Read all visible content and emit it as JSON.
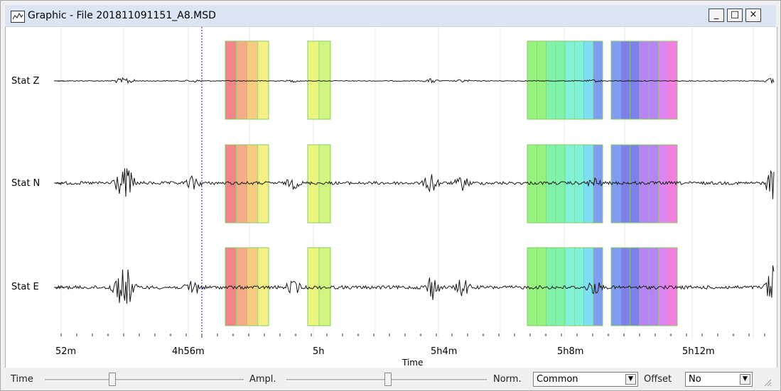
{
  "window": {
    "title": "Graphic - File 201811091151_A8.MSD",
    "minimize_label": "_",
    "maximize_label": "□",
    "close_label": "×"
  },
  "plot": {
    "channels": [
      {
        "label": "Stat Z"
      },
      {
        "label": "Stat N"
      },
      {
        "label": "Stat E"
      }
    ],
    "x_ticks": [
      {
        "label": "52m"
      },
      {
        "label": "4h56m"
      },
      {
        "label": "5h"
      },
      {
        "label": "5h4m"
      },
      {
        "label": "5h8m"
      },
      {
        "label": "5h12m"
      }
    ],
    "x_axis_title": "Time"
  },
  "controls": {
    "time_label": "Time",
    "time_value": 0.34,
    "ampl_label": "Ampl.",
    "ampl_value": 0.42,
    "norm_label": "Norm.",
    "norm_value": "Common",
    "offset_label": "Offset",
    "offset_value": "No"
  },
  "colors": {
    "trace": "#1a1a1a",
    "cursor": "#1a1aff",
    "band_palette": [
      "#f07070",
      "#f39c70",
      "#f5c46a",
      "#f4ee70",
      "#e6f56a",
      "#c8f56a",
      "#86f06a",
      "#6af09a",
      "#6af0d0",
      "#6ad8f0",
      "#6a8cf0",
      "#6a6ae6",
      "#a870f0",
      "#d870f0",
      "#f06ad8"
    ]
  }
}
